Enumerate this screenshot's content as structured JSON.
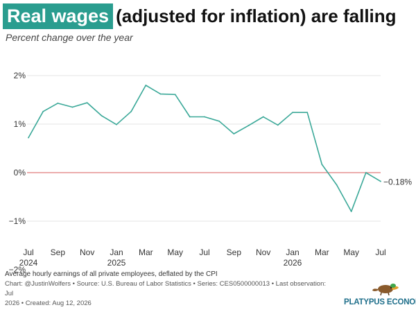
{
  "title": {
    "highlight": "Real wages",
    "rest": "(adjusted for inflation) are falling"
  },
  "subtitle": "Percent change over the year",
  "colors": {
    "accent": "#2a9d8f",
    "line": "#3aa898",
    "zero_line": "#e07a7a",
    "grid": "#e6e6e6",
    "brand": "#1f6f8b"
  },
  "chart_data": {
    "type": "line",
    "title": "Real wages (adjusted for inflation) are falling",
    "subtitle": "Percent change over the year",
    "xlabel": "",
    "ylabel": "",
    "ylim": [
      -2,
      2.5
    ],
    "grid": "horizontal",
    "y_ticks": [
      {
        "value": 2,
        "label": "2%"
      },
      {
        "value": 1,
        "label": "1%"
      },
      {
        "value": 0,
        "label": "0%"
      },
      {
        "value": -1,
        "label": "−1%"
      },
      {
        "value": -2,
        "label": "−2%"
      }
    ],
    "x_ticks": [
      {
        "date": "2024-07",
        "label": "Jul",
        "year": "2024"
      },
      {
        "date": "2024-09",
        "label": "Sep",
        "year": ""
      },
      {
        "date": "2024-11",
        "label": "Nov",
        "year": ""
      },
      {
        "date": "2025-01",
        "label": "Jan",
        "year": "2025"
      },
      {
        "date": "2025-03",
        "label": "Mar",
        "year": ""
      },
      {
        "date": "2025-05",
        "label": "May",
        "year": ""
      },
      {
        "date": "2025-07",
        "label": "Jul",
        "year": ""
      },
      {
        "date": "2025-09",
        "label": "Sep",
        "year": ""
      },
      {
        "date": "2025-11",
        "label": "Nov",
        "year": ""
      },
      {
        "date": "2026-01",
        "label": "Jan",
        "year": "2026"
      },
      {
        "date": "2026-03",
        "label": "Mar",
        "year": ""
      },
      {
        "date": "2026-05",
        "label": "May",
        "year": ""
      },
      {
        "date": "2026-07",
        "label": "Jul",
        "year": ""
      }
    ],
    "series": [
      {
        "x": [
          "2024-07",
          "2024-08",
          "2024-09",
          "2024-10",
          "2024-11",
          "2024-12",
          "2025-01",
          "2025-02",
          "2025-03",
          "2025-04",
          "2025-05",
          "2025-06",
          "2025-07",
          "2025-08",
          "2025-09",
          "2025-10",
          "2025-11",
          "2025-12",
          "2026-01",
          "2026-02",
          "2026-03",
          "2026-04",
          "2026-05",
          "2026-06",
          "2026-07"
        ],
        "y": [
          0.72,
          1.26,
          1.43,
          1.35,
          1.44,
          1.17,
          0.99,
          1.26,
          1.8,
          1.62,
          1.61,
          1.15,
          1.15,
          1.06,
          0.8,
          0.97,
          1.15,
          0.98,
          1.24,
          1.24,
          0.17,
          -0.25,
          -0.8,
          0.0,
          -0.18
        ],
        "end_label": "−0.18%"
      }
    ],
    "reference_line": {
      "y": 0
    }
  },
  "footer": {
    "line1": "Average hourly earnings of all private employees, deflated by the CPI",
    "line2": "Chart: @JustinWolfers • Source: U.S. Bureau of Labor Statistics • Series: CES0500000013 • Last observation: Jul",
    "line3": "2026 • Created: Aug 12, 2026"
  },
  "brand": {
    "name": "PLATYPUS ECONOMICS",
    "icon": "platypus-icon"
  }
}
